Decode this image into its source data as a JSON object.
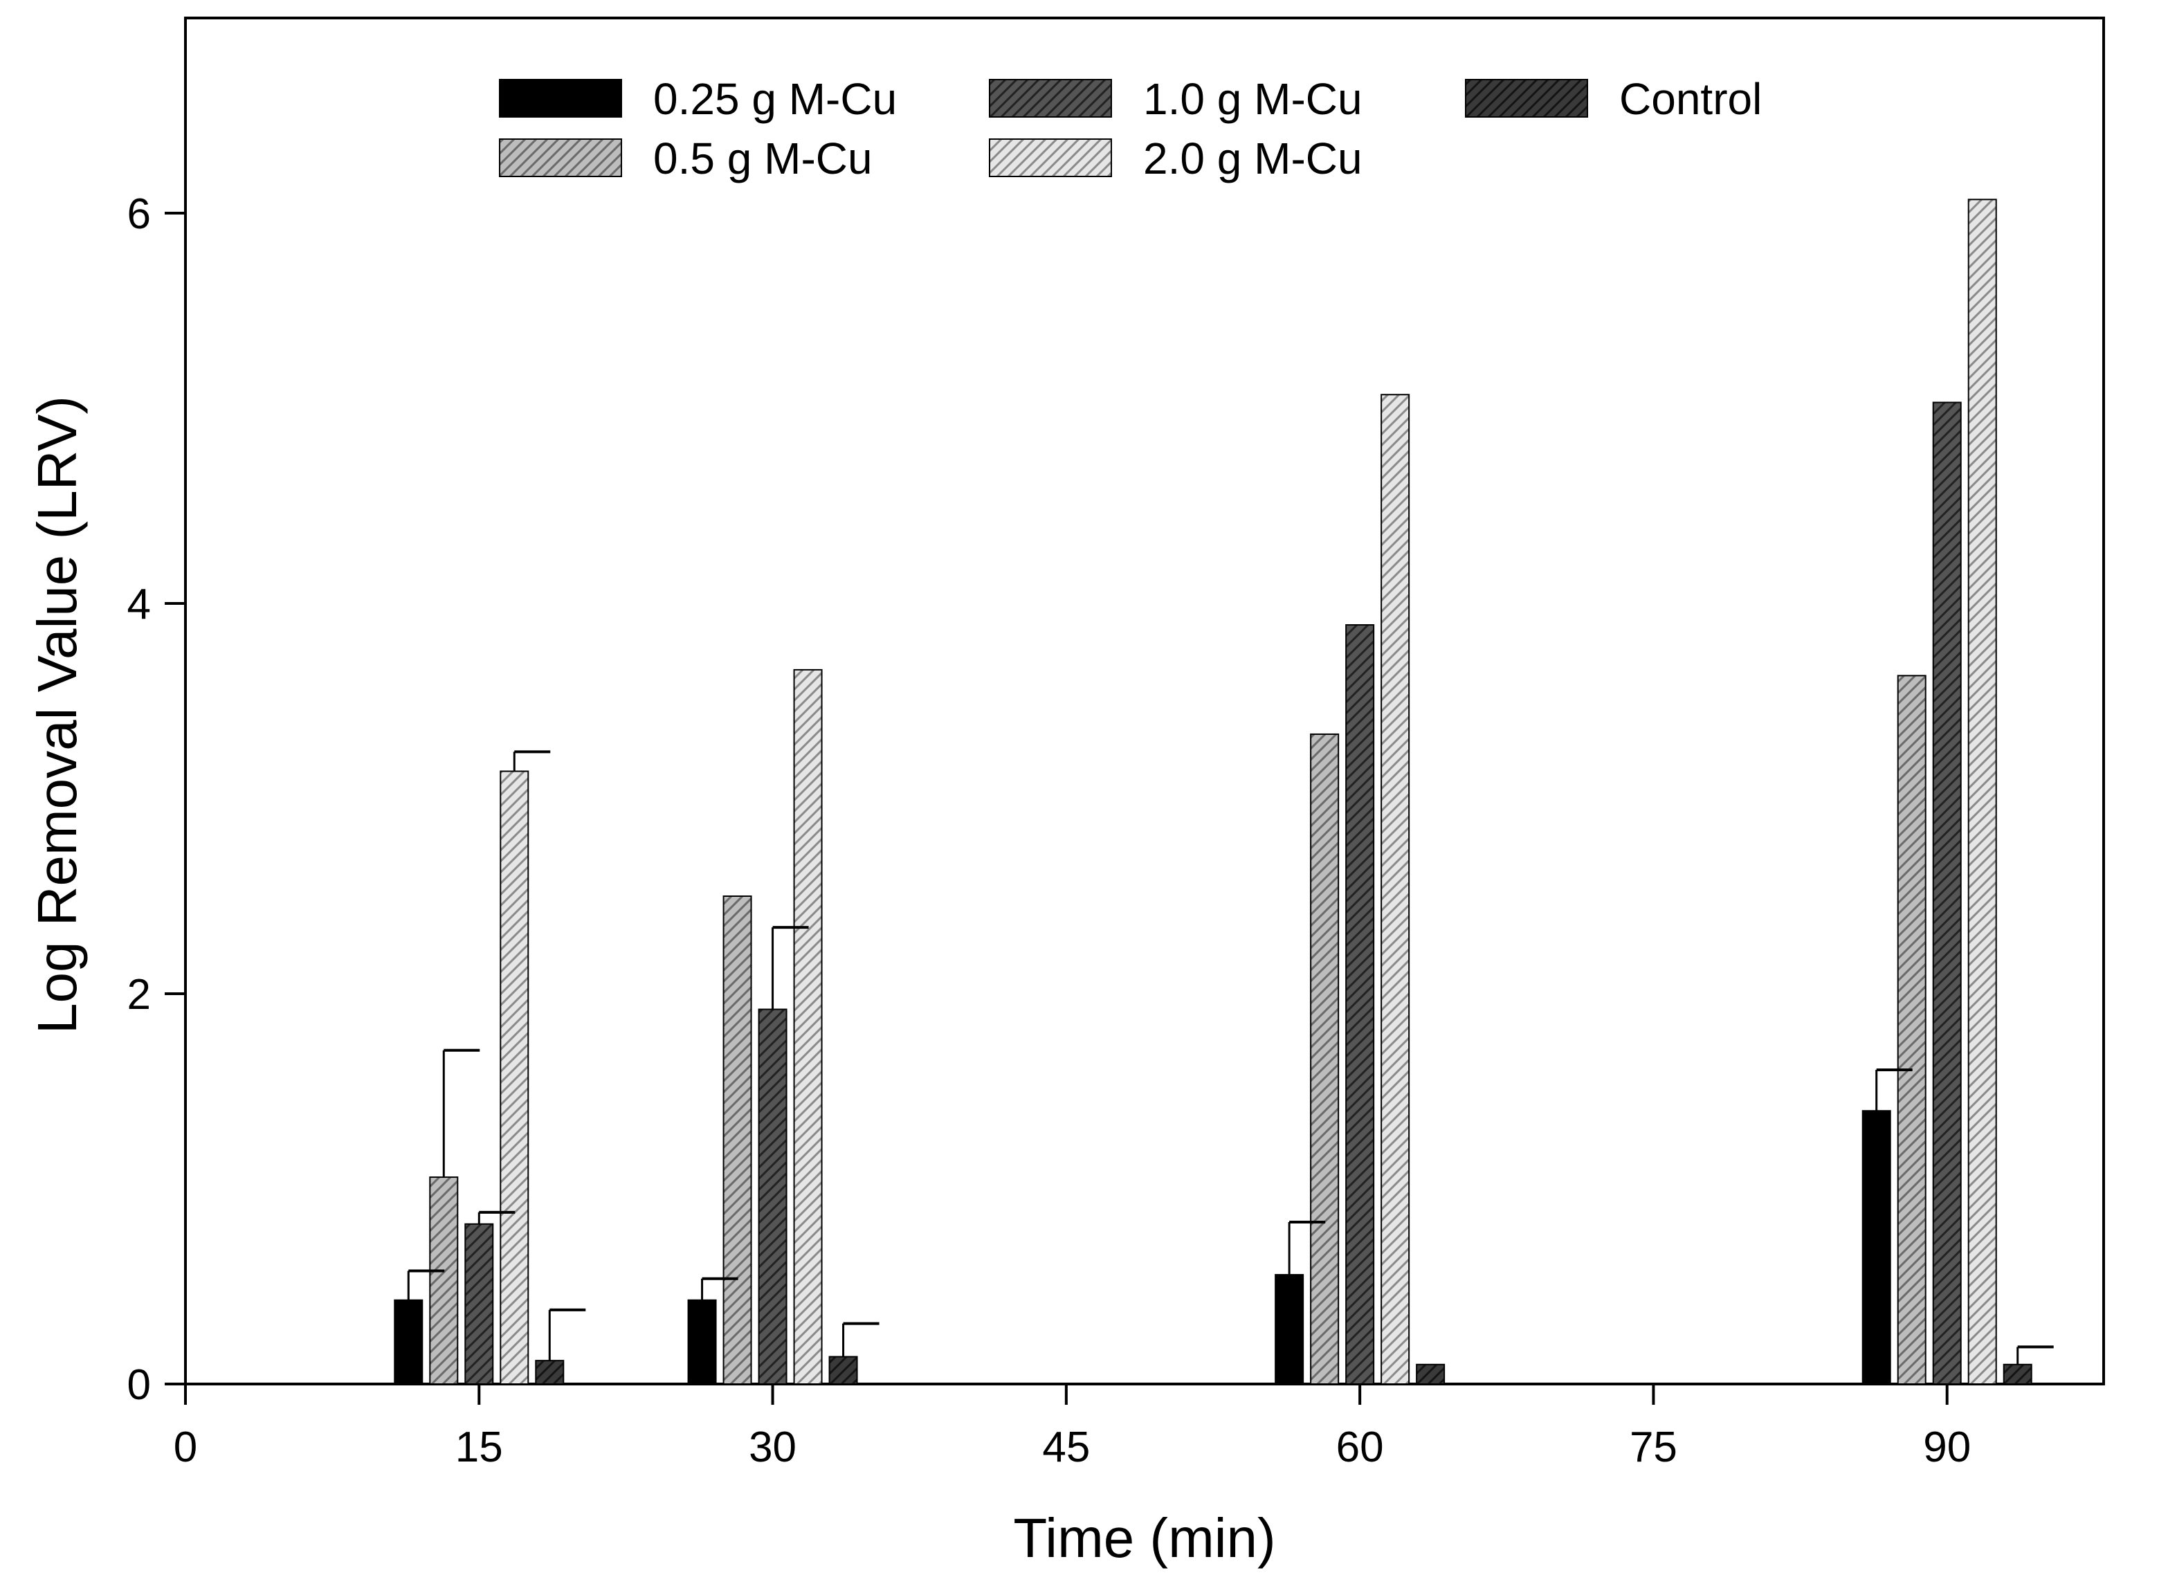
{
  "chart_data": {
    "type": "bar",
    "title": "",
    "xlabel": "Time (min)",
    "ylabel": "Log Removal Value (LRV)",
    "xlim": [
      0,
      98
    ],
    "ylim": [
      0,
      7
    ],
    "xticks": [
      0,
      15,
      30,
      45,
      60,
      75,
      90
    ],
    "yticks": [
      0,
      2,
      4,
      6
    ],
    "categories": [
      15,
      30,
      60,
      90
    ],
    "grid": false,
    "legend_position": "top-center",
    "series": [
      {
        "name": "0.25 g M-Cu",
        "values": [
          0.43,
          0.43,
          0.56,
          1.4
        ],
        "errors": [
          0.15,
          0.11,
          0.27,
          0.21
        ],
        "color": "#000000",
        "pattern": "solid"
      },
      {
        "name": "0.5 g M-Cu",
        "values": [
          1.06,
          2.5,
          3.33,
          3.63
        ],
        "errors": [
          0.65,
          0,
          0,
          0
        ],
        "color": "#bdbdbd",
        "pattern": "hatch-light"
      },
      {
        "name": "1.0 g M-Cu",
        "values": [
          0.82,
          1.92,
          3.89,
          5.03
        ],
        "errors": [
          0.06,
          0.42,
          0,
          0
        ],
        "color": "#555555",
        "pattern": "hatch-dark"
      },
      {
        "name": "2.0 g M-Cu",
        "values": [
          3.14,
          3.66,
          5.07,
          6.07
        ],
        "errors": [
          0.1,
          0,
          0,
          0
        ],
        "color": "#e6e6e6",
        "pattern": "hatch-pale"
      },
      {
        "name": "Control",
        "values": [
          0.12,
          0.14,
          0.1,
          0.1
        ],
        "errors": [
          0.26,
          0.17,
          0,
          0.09
        ],
        "color": "#3a3a3a",
        "pattern": "hatch-darker"
      }
    ]
  }
}
